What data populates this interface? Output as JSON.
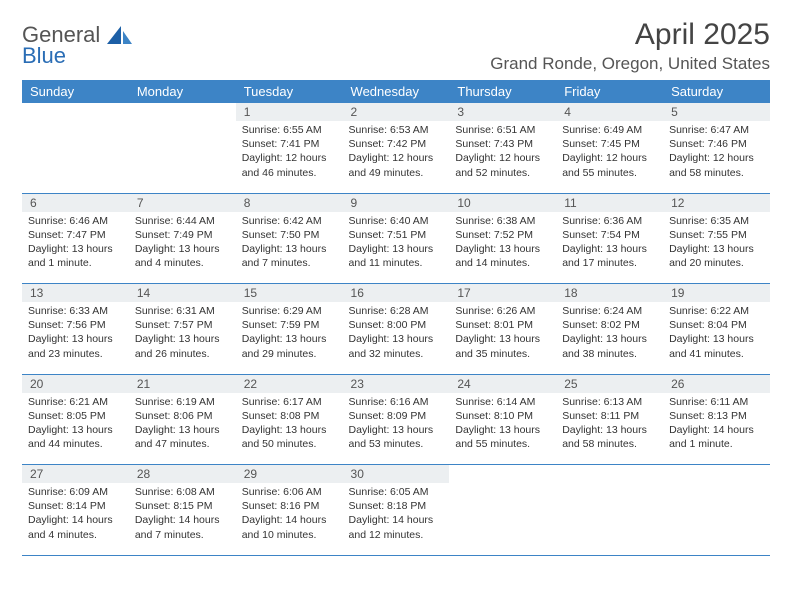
{
  "logo": {
    "general": "General",
    "blue": "Blue"
  },
  "title": "April 2025",
  "location": "Grand Ronde, Oregon, United States",
  "colors": {
    "header_bg": "#3d84c6",
    "header_text": "#ffffff",
    "daynum_bg": "#eceff1",
    "border": "#3d84c6",
    "text": "#333333",
    "logo_gray": "#555555",
    "logo_blue": "#2a6db5"
  },
  "weekdays": [
    "Sunday",
    "Monday",
    "Tuesday",
    "Wednesday",
    "Thursday",
    "Friday",
    "Saturday"
  ],
  "weeks": [
    [
      {
        "n": "",
        "d": ""
      },
      {
        "n": "",
        "d": ""
      },
      {
        "n": "1",
        "sr": "Sunrise: 6:55 AM",
        "ss": "Sunset: 7:41 PM",
        "dl": "Daylight: 12 hours and 46 minutes."
      },
      {
        "n": "2",
        "sr": "Sunrise: 6:53 AM",
        "ss": "Sunset: 7:42 PM",
        "dl": "Daylight: 12 hours and 49 minutes."
      },
      {
        "n": "3",
        "sr": "Sunrise: 6:51 AM",
        "ss": "Sunset: 7:43 PM",
        "dl": "Daylight: 12 hours and 52 minutes."
      },
      {
        "n": "4",
        "sr": "Sunrise: 6:49 AM",
        "ss": "Sunset: 7:45 PM",
        "dl": "Daylight: 12 hours and 55 minutes."
      },
      {
        "n": "5",
        "sr": "Sunrise: 6:47 AM",
        "ss": "Sunset: 7:46 PM",
        "dl": "Daylight: 12 hours and 58 minutes."
      }
    ],
    [
      {
        "n": "6",
        "sr": "Sunrise: 6:46 AM",
        "ss": "Sunset: 7:47 PM",
        "dl": "Daylight: 13 hours and 1 minute."
      },
      {
        "n": "7",
        "sr": "Sunrise: 6:44 AM",
        "ss": "Sunset: 7:49 PM",
        "dl": "Daylight: 13 hours and 4 minutes."
      },
      {
        "n": "8",
        "sr": "Sunrise: 6:42 AM",
        "ss": "Sunset: 7:50 PM",
        "dl": "Daylight: 13 hours and 7 minutes."
      },
      {
        "n": "9",
        "sr": "Sunrise: 6:40 AM",
        "ss": "Sunset: 7:51 PM",
        "dl": "Daylight: 13 hours and 11 minutes."
      },
      {
        "n": "10",
        "sr": "Sunrise: 6:38 AM",
        "ss": "Sunset: 7:52 PM",
        "dl": "Daylight: 13 hours and 14 minutes."
      },
      {
        "n": "11",
        "sr": "Sunrise: 6:36 AM",
        "ss": "Sunset: 7:54 PM",
        "dl": "Daylight: 13 hours and 17 minutes."
      },
      {
        "n": "12",
        "sr": "Sunrise: 6:35 AM",
        "ss": "Sunset: 7:55 PM",
        "dl": "Daylight: 13 hours and 20 minutes."
      }
    ],
    [
      {
        "n": "13",
        "sr": "Sunrise: 6:33 AM",
        "ss": "Sunset: 7:56 PM",
        "dl": "Daylight: 13 hours and 23 minutes."
      },
      {
        "n": "14",
        "sr": "Sunrise: 6:31 AM",
        "ss": "Sunset: 7:57 PM",
        "dl": "Daylight: 13 hours and 26 minutes."
      },
      {
        "n": "15",
        "sr": "Sunrise: 6:29 AM",
        "ss": "Sunset: 7:59 PM",
        "dl": "Daylight: 13 hours and 29 minutes."
      },
      {
        "n": "16",
        "sr": "Sunrise: 6:28 AM",
        "ss": "Sunset: 8:00 PM",
        "dl": "Daylight: 13 hours and 32 minutes."
      },
      {
        "n": "17",
        "sr": "Sunrise: 6:26 AM",
        "ss": "Sunset: 8:01 PM",
        "dl": "Daylight: 13 hours and 35 minutes."
      },
      {
        "n": "18",
        "sr": "Sunrise: 6:24 AM",
        "ss": "Sunset: 8:02 PM",
        "dl": "Daylight: 13 hours and 38 minutes."
      },
      {
        "n": "19",
        "sr": "Sunrise: 6:22 AM",
        "ss": "Sunset: 8:04 PM",
        "dl": "Daylight: 13 hours and 41 minutes."
      }
    ],
    [
      {
        "n": "20",
        "sr": "Sunrise: 6:21 AM",
        "ss": "Sunset: 8:05 PM",
        "dl": "Daylight: 13 hours and 44 minutes."
      },
      {
        "n": "21",
        "sr": "Sunrise: 6:19 AM",
        "ss": "Sunset: 8:06 PM",
        "dl": "Daylight: 13 hours and 47 minutes."
      },
      {
        "n": "22",
        "sr": "Sunrise: 6:17 AM",
        "ss": "Sunset: 8:08 PM",
        "dl": "Daylight: 13 hours and 50 minutes."
      },
      {
        "n": "23",
        "sr": "Sunrise: 6:16 AM",
        "ss": "Sunset: 8:09 PM",
        "dl": "Daylight: 13 hours and 53 minutes."
      },
      {
        "n": "24",
        "sr": "Sunrise: 6:14 AM",
        "ss": "Sunset: 8:10 PM",
        "dl": "Daylight: 13 hours and 55 minutes."
      },
      {
        "n": "25",
        "sr": "Sunrise: 6:13 AM",
        "ss": "Sunset: 8:11 PM",
        "dl": "Daylight: 13 hours and 58 minutes."
      },
      {
        "n": "26",
        "sr": "Sunrise: 6:11 AM",
        "ss": "Sunset: 8:13 PM",
        "dl": "Daylight: 14 hours and 1 minute."
      }
    ],
    [
      {
        "n": "27",
        "sr": "Sunrise: 6:09 AM",
        "ss": "Sunset: 8:14 PM",
        "dl": "Daylight: 14 hours and 4 minutes."
      },
      {
        "n": "28",
        "sr": "Sunrise: 6:08 AM",
        "ss": "Sunset: 8:15 PM",
        "dl": "Daylight: 14 hours and 7 minutes."
      },
      {
        "n": "29",
        "sr": "Sunrise: 6:06 AM",
        "ss": "Sunset: 8:16 PM",
        "dl": "Daylight: 14 hours and 10 minutes."
      },
      {
        "n": "30",
        "sr": "Sunrise: 6:05 AM",
        "ss": "Sunset: 8:18 PM",
        "dl": "Daylight: 14 hours and 12 minutes."
      },
      {
        "n": "",
        "d": ""
      },
      {
        "n": "",
        "d": ""
      },
      {
        "n": "",
        "d": ""
      }
    ]
  ]
}
